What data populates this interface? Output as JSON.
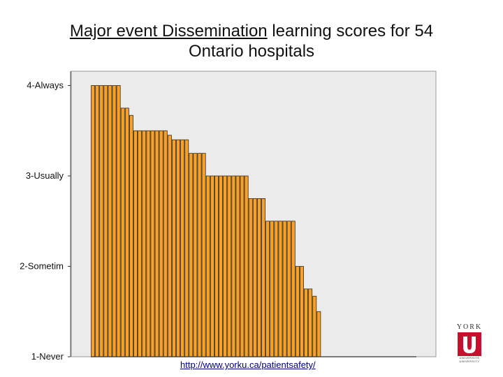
{
  "title": {
    "part1": "Major event Dissemination",
    "part2": " learning scores for 54",
    "line2": "Ontario hospitals"
  },
  "chart_data": {
    "type": "bar",
    "title": "Major event Dissemination learning scores for 54 Ontario hospitals",
    "xlabel": "",
    "ylabel": "",
    "ylim": [
      1,
      4.1
    ],
    "yticks": [
      {
        "value": 4,
        "label": "4-Always"
      },
      {
        "value": 3,
        "label": "3-Usually"
      },
      {
        "value": 2,
        "label": "2-Sometim"
      },
      {
        "value": 1,
        "label": "1-Never"
      }
    ],
    "bar_color": "#f7a12b",
    "bar_edge_color": "#3a2a10",
    "plot_background": "#ebebeb",
    "values": [
      4.0,
      4.0,
      4.0,
      4.0,
      4.0,
      4.0,
      4.0,
      3.75,
      3.75,
      3.67,
      3.5,
      3.5,
      3.5,
      3.5,
      3.5,
      3.5,
      3.5,
      3.5,
      3.45,
      3.4,
      3.4,
      3.4,
      3.4,
      3.25,
      3.25,
      3.25,
      3.25,
      3.0,
      3.0,
      3.0,
      3.0,
      3.0,
      3.0,
      3.0,
      3.0,
      3.0,
      3.0,
      2.75,
      2.75,
      2.75,
      2.75,
      2.5,
      2.5,
      2.5,
      2.5,
      2.5,
      2.5,
      2.5,
      2.0,
      2.0,
      1.75,
      1.75,
      1.67,
      1.5
    ]
  },
  "footer": {
    "url": "http://www.yorku.ca/patientsafety/"
  },
  "logo": {
    "york": "YORK",
    "university_line1": "UNIVERSITÉ",
    "university_line2": "UNIVERSITY",
    "color": "#c8102e"
  }
}
